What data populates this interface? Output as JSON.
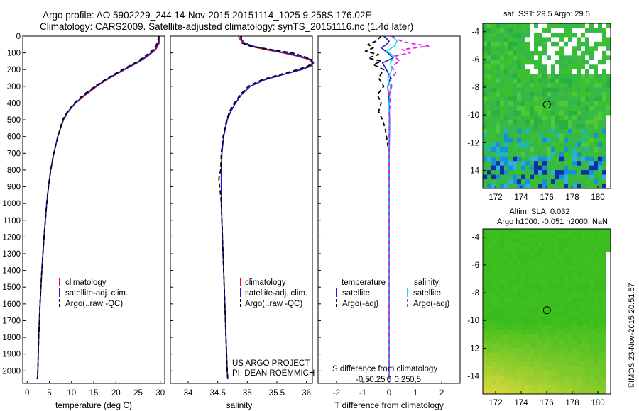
{
  "header": {
    "line1": "Argo profile: AO 5902229_244 14-Nov-2015 20151114_1025 9.258S 176.02E",
    "line2": "Climatology: CARS2009. Satellite-adjusted climatology: synTS_20151116.nc (1.4d later)"
  },
  "colors": {
    "climatology": "#e01010",
    "satellite": "#1020d0",
    "argo": "#000000",
    "salinity_satellite": "#10e0f0",
    "salinity_argo": "#e020e0",
    "map_green": "#36c02a",
    "map_blue": "#1890d8",
    "sla_yellow": "#d8f040"
  },
  "chart_data": [
    {
      "id": "temperature",
      "type": "line",
      "xlabel": "temperature (deg C)",
      "ylabel": "",
      "xlim": [
        -1,
        31
      ],
      "ylim": [
        2075,
        0
      ],
      "xticks": [
        "0",
        "5",
        "10",
        "15",
        "20",
        "25",
        "30"
      ],
      "xtick_values": [
        0,
        5,
        10,
        15,
        20,
        25,
        30
      ],
      "yticks": [
        "0",
        "100",
        "200",
        "300",
        "400",
        "500",
        "600",
        "700",
        "800",
        "900",
        "1000",
        "1100",
        "1200",
        "1300",
        "1400",
        "1500",
        "1600",
        "1700",
        "1800",
        "1900",
        "2000"
      ],
      "ytick_values": [
        0,
        100,
        200,
        300,
        400,
        500,
        600,
        700,
        800,
        900,
        1000,
        1100,
        1200,
        1300,
        1400,
        1500,
        1600,
        1700,
        1800,
        1900,
        2000
      ],
      "legend": [
        "climatology",
        "satellite-adj. clim.",
        "Argo(..raw -QC)"
      ],
      "series": [
        {
          "name": "climatology",
          "style": "solid",
          "color": "#e01010",
          "depth": [
            0,
            40,
            80,
            120,
            160,
            200,
            250,
            300,
            350,
            400,
            450,
            500,
            600,
            700,
            800,
            900,
            1000,
            1200,
            1400,
            1600,
            1800,
            2000,
            2050
          ],
          "values": [
            29.9,
            29.8,
            29.0,
            27.2,
            24.8,
            22.0,
            18.6,
            15.7,
            13.2,
            10.9,
            9.3,
            8.2,
            6.9,
            6.0,
            5.3,
            4.8,
            4.4,
            3.8,
            3.3,
            2.9,
            2.6,
            2.4,
            2.3
          ]
        },
        {
          "name": "satellite-adj. clim.",
          "style": "solid",
          "color": "#1020d0",
          "depth": [
            0,
            40,
            80,
            120,
            160,
            200,
            250,
            300,
            350,
            400,
            450,
            500,
            600,
            700,
            800,
            900,
            1000,
            1200,
            1400,
            1600,
            1800,
            2000,
            2050
          ],
          "values": [
            29.7,
            29.6,
            28.8,
            27.0,
            24.6,
            21.8,
            18.4,
            15.5,
            13.0,
            10.8,
            9.2,
            8.1,
            6.9,
            6.0,
            5.3,
            4.8,
            4.4,
            3.8,
            3.3,
            2.9,
            2.6,
            2.4,
            2.3
          ]
        },
        {
          "name": "Argo(..raw -QC)",
          "style": "dashed",
          "color": "#000000",
          "depth": [
            0,
            40,
            80,
            120,
            160,
            200,
            250,
            300,
            350,
            400,
            450,
            500,
            600,
            700,
            800,
            900,
            1000,
            1200,
            1400,
            1600,
            1800,
            2000,
            2050
          ],
          "values": [
            29.6,
            29.4,
            28.4,
            26.6,
            24.3,
            21.5,
            18.1,
            15.3,
            12.7,
            10.6,
            9.1,
            8.0,
            6.9,
            6.0,
            5.3,
            4.8,
            4.4,
            3.8,
            3.3,
            2.9,
            2.6,
            2.4,
            2.3
          ]
        }
      ]
    },
    {
      "id": "salinity",
      "type": "line",
      "xlabel": "salinity",
      "ylabel": "",
      "xlim": [
        33.7,
        36.1
      ],
      "ylim": [
        2075,
        0
      ],
      "xticks": [
        "34",
        "34.5",
        "35",
        "35.5",
        "36"
      ],
      "xtick_values": [
        34,
        34.5,
        35,
        35.5,
        36
      ],
      "legend": [
        "climatology",
        "satellite-adj. clim.",
        "Argo(..raw -QC)"
      ],
      "series": [
        {
          "name": "climatology",
          "style": "solid",
          "color": "#e01010",
          "depth": [
            0,
            20,
            40,
            60,
            80,
            100,
            120,
            140,
            160,
            180,
            200,
            230,
            260,
            300,
            350,
            400,
            450,
            500,
            600,
            700,
            800,
            900,
            1000,
            1200,
            1400,
            1600,
            1800,
            2000,
            2050
          ],
          "values": [
            34.85,
            34.88,
            34.92,
            35.05,
            35.3,
            35.6,
            35.85,
            36.05,
            36.1,
            36.05,
            35.9,
            35.6,
            35.3,
            35.05,
            34.9,
            34.8,
            34.72,
            34.66,
            34.6,
            34.57,
            34.56,
            34.56,
            34.56,
            34.58,
            34.6,
            34.62,
            34.64,
            34.66,
            34.67
          ]
        },
        {
          "name": "satellite-adj. clim.",
          "style": "solid",
          "color": "#1020d0",
          "depth": [
            0,
            20,
            40,
            60,
            80,
            100,
            120,
            140,
            160,
            180,
            200,
            230,
            260,
            300,
            350,
            400,
            450,
            500,
            600,
            700,
            800,
            900,
            1000,
            1200,
            1400,
            1600,
            1800,
            2000,
            2050
          ],
          "values": [
            34.88,
            34.9,
            34.95,
            35.1,
            35.35,
            35.65,
            35.9,
            36.08,
            36.12,
            36.07,
            35.92,
            35.6,
            35.3,
            35.05,
            34.9,
            34.8,
            34.72,
            34.66,
            34.6,
            34.57,
            34.56,
            34.56,
            34.56,
            34.58,
            34.6,
            34.62,
            34.64,
            34.66,
            34.67
          ]
        },
        {
          "name": "Argo(..raw -QC)",
          "style": "dashed",
          "color": "#000000",
          "depth": [
            0,
            20,
            40,
            60,
            80,
            100,
            120,
            140,
            160,
            180,
            200,
            230,
            260,
            300,
            350,
            400,
            450,
            500,
            600,
            700,
            800,
            850,
            900,
            950,
            1000,
            1200,
            1400,
            1600,
            1800,
            2000,
            2050
          ],
          "values": [
            34.9,
            34.9,
            34.9,
            35.05,
            35.4,
            35.75,
            35.95,
            36.08,
            36.1,
            36.02,
            35.85,
            35.55,
            35.25,
            35.02,
            34.88,
            34.78,
            34.7,
            34.65,
            34.59,
            34.56,
            34.55,
            34.52,
            34.53,
            34.55,
            34.56,
            34.58,
            34.6,
            34.62,
            34.64,
            34.66,
            34.67
          ]
        }
      ]
    },
    {
      "id": "difference",
      "type": "line",
      "xlabel": "T difference from climatology",
      "top_label": "S difference from climatology",
      "xlim": [
        -2.7,
        2.7
      ],
      "ylim": [
        2075,
        0
      ],
      "xticks": [
        "-2",
        "-1",
        "0",
        "1",
        "2"
      ],
      "xtick_values": [
        -2,
        -1,
        0,
        1,
        2
      ],
      "sticks": [
        "-0.5",
        "-0.25",
        "0",
        "0.25",
        "0.5"
      ],
      "stick_values": [
        -0.5,
        -0.25,
        0,
        0.25,
        0.5
      ],
      "legend_heads": [
        "temperature",
        "salinity"
      ],
      "legend": [
        "satellite",
        "Argo(-adj)",
        "satellite",
        "Argo(-adj)"
      ],
      "series": [
        {
          "name": "temperature satellite",
          "style": "solid",
          "color": "#1020d0",
          "depth": [
            0,
            30,
            50,
            70,
            100,
            130,
            160,
            200,
            250,
            300,
            400,
            500,
            800,
            1200,
            2050
          ],
          "values": [
            -0.2,
            0.0,
            -0.1,
            -0.3,
            -0.05,
            0.15,
            -0.25,
            -0.1,
            0.05,
            -0.05,
            0.0,
            0.02,
            0.0,
            0.0,
            0.0
          ]
        },
        {
          "name": "temperature Argo(-adj)",
          "style": "dashed",
          "color": "#000000",
          "depth": [
            0,
            30,
            50,
            70,
            90,
            110,
            130,
            150,
            170,
            200,
            250,
            300,
            350,
            400,
            450,
            500,
            550,
            600,
            650,
            700,
            800,
            1000,
            2050
          ],
          "values": [
            -0.3,
            -0.5,
            -0.8,
            -0.6,
            -0.9,
            -0.4,
            -0.8,
            -0.3,
            -0.6,
            -0.2,
            -0.4,
            -0.2,
            -0.45,
            -0.3,
            -0.4,
            -0.25,
            -0.15,
            -0.1,
            -0.05,
            0.0,
            0.0,
            0.0,
            0.0
          ]
        },
        {
          "name": "salinity satellite",
          "style": "solid",
          "color": "#10e0f0",
          "depth": [
            0,
            30,
            60,
            90,
            120,
            160,
            200,
            260,
            300,
            400,
            600,
            1000,
            2050
          ],
          "values": [
            0.15,
            0.3,
            0.2,
            -0.1,
            0.2,
            0.05,
            0.1,
            -0.05,
            0.05,
            0.0,
            0.0,
            0.0,
            0.0
          ]
        },
        {
          "name": "salinity Argo(-adj)",
          "style": "dashed",
          "color": "#e020e0",
          "depth": [
            0,
            20,
            40,
            60,
            80,
            100,
            120,
            150,
            180,
            220,
            260,
            300,
            350,
            400,
            450,
            500,
            600,
            700,
            800,
            1000,
            2050
          ],
          "values": [
            0.1,
            0.3,
            0.7,
            1.5,
            0.5,
            0.8,
            0.2,
            0.4,
            0.1,
            0.25,
            0.05,
            0.1,
            0.0,
            0.05,
            0.0,
            0.02,
            0.0,
            0.0,
            0.0,
            0.0,
            0.0
          ]
        }
      ]
    },
    {
      "id": "sst_map",
      "type": "heatmap",
      "title": "sat. SST: 29.5 Argo: 29.5",
      "xlim": [
        171,
        181
      ],
      "ylim": [
        -15.3,
        -3.4
      ],
      "xticks": [
        "172",
        "174",
        "176",
        "178",
        "180"
      ],
      "xtick_values": [
        172,
        174,
        176,
        178,
        180
      ],
      "yticks": [
        "-4",
        "-6",
        "-8",
        "-10",
        "-12",
        "-14"
      ],
      "ytick_values": [
        -4,
        -6,
        -8,
        -10,
        -12,
        -14
      ],
      "marker": {
        "lon": 176.02,
        "lat": -9.258
      }
    },
    {
      "id": "sla_map",
      "type": "heatmap",
      "title": "Altim. SLA: 0.032",
      "subtitle": "Argo h1000: -0.051 h2000: NaN",
      "xlim": [
        171,
        181
      ],
      "ylim": [
        -15.3,
        -3.4
      ],
      "xticks": [
        "172",
        "174",
        "176",
        "178",
        "180"
      ],
      "xtick_values": [
        172,
        174,
        176,
        178,
        180
      ],
      "yticks": [
        "-4",
        "-6",
        "-8",
        "-10",
        "-12",
        "-14"
      ],
      "ytick_values": [
        -4,
        -6,
        -8,
        -10,
        -12,
        -14
      ],
      "marker": {
        "lon": 176.02,
        "lat": -9.258
      }
    }
  ],
  "annotation": {
    "project": "US ARGO PROJECT",
    "pi": "PI: DEAN ROEMMICH"
  },
  "credit": "©IMOS 23-Nov-2015 20:51:57"
}
